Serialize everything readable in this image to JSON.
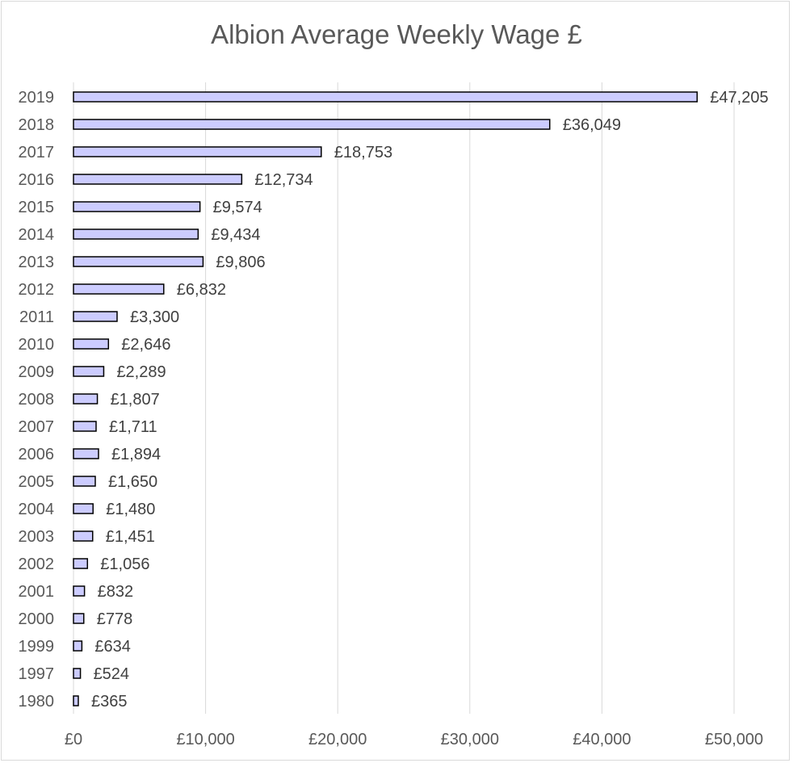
{
  "chart_data": {
    "type": "bar",
    "orientation": "horizontal",
    "title": "Albion Average Weekly Wage £",
    "categories": [
      "2019",
      "2018",
      "2017",
      "2016",
      "2015",
      "2014",
      "2013",
      "2012",
      "2011",
      "2010",
      "2009",
      "2008",
      "2007",
      "2006",
      "2005",
      "2004",
      "2003",
      "2002",
      "2001",
      "2000",
      "1999",
      "1997",
      "1980"
    ],
    "values": [
      47205,
      36049,
      18753,
      12734,
      9574,
      9434,
      9806,
      6832,
      3300,
      2646,
      2289,
      1807,
      1711,
      1894,
      1650,
      1480,
      1451,
      1056,
      832,
      778,
      634,
      524,
      365
    ],
    "data_labels": [
      "£47,205",
      "£36,049",
      "£18,753",
      "£12,734",
      "£9,574",
      "£9,434",
      "£9,806",
      "£6,832",
      "£3,300",
      "£2,646",
      "£2,289",
      "£1,807",
      "£1,711",
      "£1,894",
      "£1,650",
      "£1,480",
      "£1,451",
      "£1,056",
      "£832",
      "£778",
      "£634",
      "£524",
      "£365"
    ],
    "x_ticks": [
      0,
      10000,
      20000,
      30000,
      40000,
      50000
    ],
    "x_tick_labels": [
      "£0",
      "£10,000",
      "£20,000",
      "£30,000",
      "£40,000",
      "£50,000"
    ],
    "xlim": [
      0,
      50000
    ],
    "xlabel": "",
    "ylabel": "",
    "grid": "vertical",
    "legend": "none",
    "colors": {
      "bar_fill": "#ccccff",
      "bar_stroke": "#000000",
      "grid": "#d9d9d9",
      "text": "#595959"
    }
  }
}
